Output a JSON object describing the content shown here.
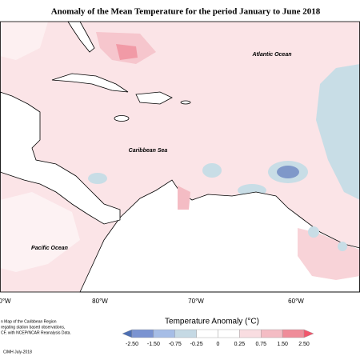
{
  "title": "Anomaly of the Mean Temperature for the period January to June 2018",
  "map_labels": {
    "atlantic": "Atlantic Ocean",
    "caribbean": "Caribbean Sea",
    "pacific": "Pacific Ocean"
  },
  "longitudes": [
    "0°W",
    "80°W",
    "70°W",
    "60°W"
  ],
  "colorbar": {
    "title": "Temperature Anomaly (°C)",
    "ticks": [
      "-2.50",
      "-1.50",
      "-0.75",
      "-0.25",
      "0",
      "0.25",
      "0.75",
      "1.50",
      "2.50"
    ],
    "colors": [
      "#4d6fb3",
      "#7a93d1",
      "#a6bde6",
      "#c5d9e4",
      "#ffffff",
      "#ffffff",
      "#f9dde1",
      "#f4bcc4",
      "#ef8c99",
      "#f2566c"
    ]
  },
  "footnote": [
    "n Map of the Caribbean Region",
    "regating station based observations,",
    "CF, with NCEP/NCAR Reanalysis Data."
  ],
  "credit": "CIMH July-2018"
}
